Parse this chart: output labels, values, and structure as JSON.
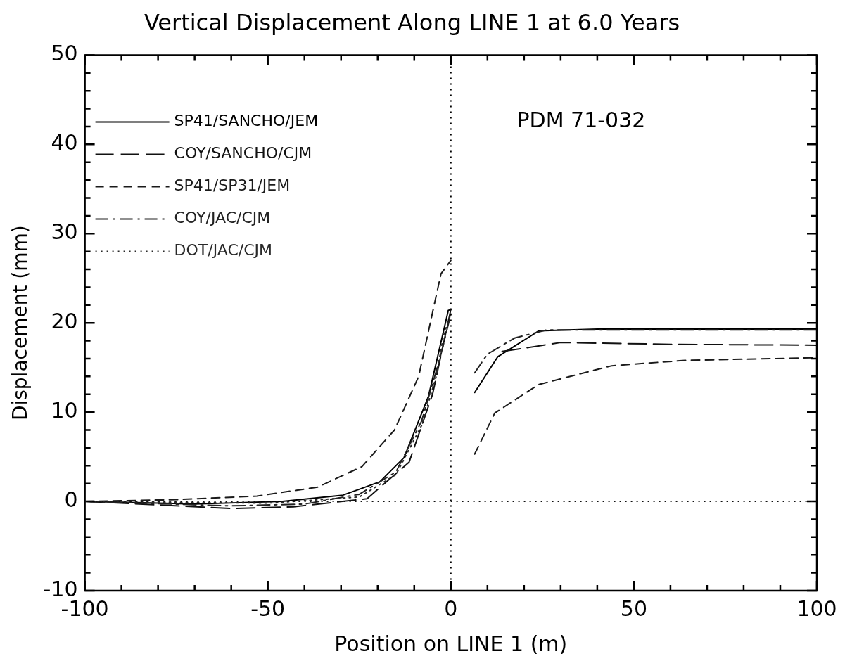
{
  "chart_data": {
    "type": "line",
    "title": "Vertical Displacement Along LINE 1 at 6.0 Years",
    "xlabel": "Position on LINE 1 (m)",
    "ylabel": "Displacement (mm)",
    "xlim": [
      -100,
      100
    ],
    "ylim": [
      -10,
      50
    ],
    "xticks": [
      -100,
      {
        "value": -90,
        "label": null
      },
      {
        "value": -80,
        "label": null
      },
      {
        "value": -70,
        "label": null
      },
      {
        "value": -60,
        "label": null
      },
      -50,
      {
        "value": -40,
        "label": null
      },
      {
        "value": -30,
        "label": null
      },
      {
        "value": -20,
        "label": null
      },
      {
        "value": -10,
        "label": null
      },
      0,
      {
        "value": 10,
        "label": null
      },
      {
        "value": 20,
        "label": null
      },
      {
        "value": 30,
        "label": null
      },
      {
        "value": 40,
        "label": null
      },
      50,
      {
        "value": 60,
        "label": null
      },
      {
        "value": 70,
        "label": null
      },
      {
        "value": 80,
        "label": null
      },
      {
        "value": 90,
        "label": null
      },
      100
    ],
    "yticks": [
      -10,
      {
        "value": -8,
        "label": null
      },
      {
        "value": -6,
        "label": null
      },
      {
        "value": -4,
        "label": null
      },
      {
        "value": -2,
        "label": null
      },
      0,
      {
        "value": 2,
        "label": null
      },
      {
        "value": 4,
        "label": null
      },
      {
        "value": 6,
        "label": null
      },
      {
        "value": 8,
        "label": null
      },
      10,
      {
        "value": 12,
        "label": null
      },
      {
        "value": 14,
        "label": null
      },
      {
        "value": 16,
        "label": null
      },
      {
        "value": 18,
        "label": null
      },
      20,
      {
        "value": 22,
        "label": null
      },
      {
        "value": 24,
        "label": null
      },
      {
        "value": 26,
        "label": null
      },
      {
        "value": 28,
        "label": null
      },
      30,
      {
        "value": 32,
        "label": null
      },
      {
        "value": 34,
        "label": null
      },
      {
        "value": 36,
        "label": null
      },
      {
        "value": 38,
        "label": null
      },
      40,
      {
        "value": 42,
        "label": null
      },
      {
        "value": 44,
        "label": null
      },
      {
        "value": 46,
        "label": null
      },
      {
        "value": 48,
        "label": null
      },
      50
    ],
    "grid": false,
    "legend": "top left",
    "marker": "none",
    "annotations": [
      "PDM 71-032"
    ],
    "ref_lines": [
      {
        "axis": "x",
        "value": 0,
        "color": "#000000",
        "line_style": "dotted"
      },
      {
        "axis": "y",
        "value": 0,
        "color": "#111111",
        "line_style": "dotted"
      }
    ],
    "series": [
      {
        "name": "SP41/SANCHO/JEM",
        "color": "#000000",
        "line_style": "solid",
        "x": [
          -100,
          -70,
          -46,
          -29.5,
          -19.4,
          -12.8,
          -6.1,
          -0.7,
          0,
          3,
          6.5,
          12.8,
          24,
          40,
          70,
          100
        ],
        "values": [
          0,
          -0.3,
          0,
          0.7,
          2.2,
          4.9,
          11.8,
          21.4,
          21.5,
          null,
          12.2,
          16.2,
          19.1,
          19.3,
          19.3,
          19.3
        ]
      },
      {
        "name": "COY/SANCHO/CJM",
        "color": "#111111",
        "line_style": "longdash",
        "x": [
          -100,
          -60,
          -43,
          -22.9,
          -11.4,
          -5,
          0,
          3,
          14,
          30,
          60,
          100
        ],
        "values": [
          0,
          -0.8,
          -0.6,
          0.3,
          4.4,
          12,
          21.5,
          null,
          16.8,
          17.8,
          17.6,
          17.5
        ]
      },
      {
        "name": "SP41/SP31/JEM",
        "color": "#1a1a1a",
        "line_style": "dashed",
        "x": [
          -100,
          -75,
          -53,
          -36.4,
          -24.3,
          -15.4,
          -8.8,
          -2.7,
          0,
          3,
          6.5,
          12,
          24,
          44,
          64,
          100
        ],
        "values": [
          0,
          0.2,
          0.6,
          1.6,
          3.9,
          8,
          14,
          25.5,
          27,
          null,
          5.3,
          9.9,
          13.1,
          15.2,
          15.8,
          16.1
        ]
      },
      {
        "name": "COY/JAC/CJM",
        "color": "#222222",
        "line_style": "dashdot",
        "x": [
          -100,
          -60,
          -40,
          -25,
          -15,
          -8,
          -3,
          0,
          3,
          6.5,
          10,
          17.4,
          26,
          60,
          100
        ],
        "values": [
          0,
          -0.5,
          -0.3,
          0.8,
          3.3,
          9,
          16,
          21,
          null,
          14.4,
          16.5,
          18.3,
          19.2,
          19.2,
          19.2
        ]
      },
      {
        "name": "DOT/JAC/CJM",
        "color": "#2a2a2a",
        "line_style": "dotted",
        "x": [
          -100,
          -50,
          -25,
          -15,
          -8,
          -4,
          -2,
          0
        ],
        "values": [
          0,
          -0.2,
          0.5,
          3,
          8.5,
          14,
          18.6,
          21
        ]
      }
    ]
  }
}
